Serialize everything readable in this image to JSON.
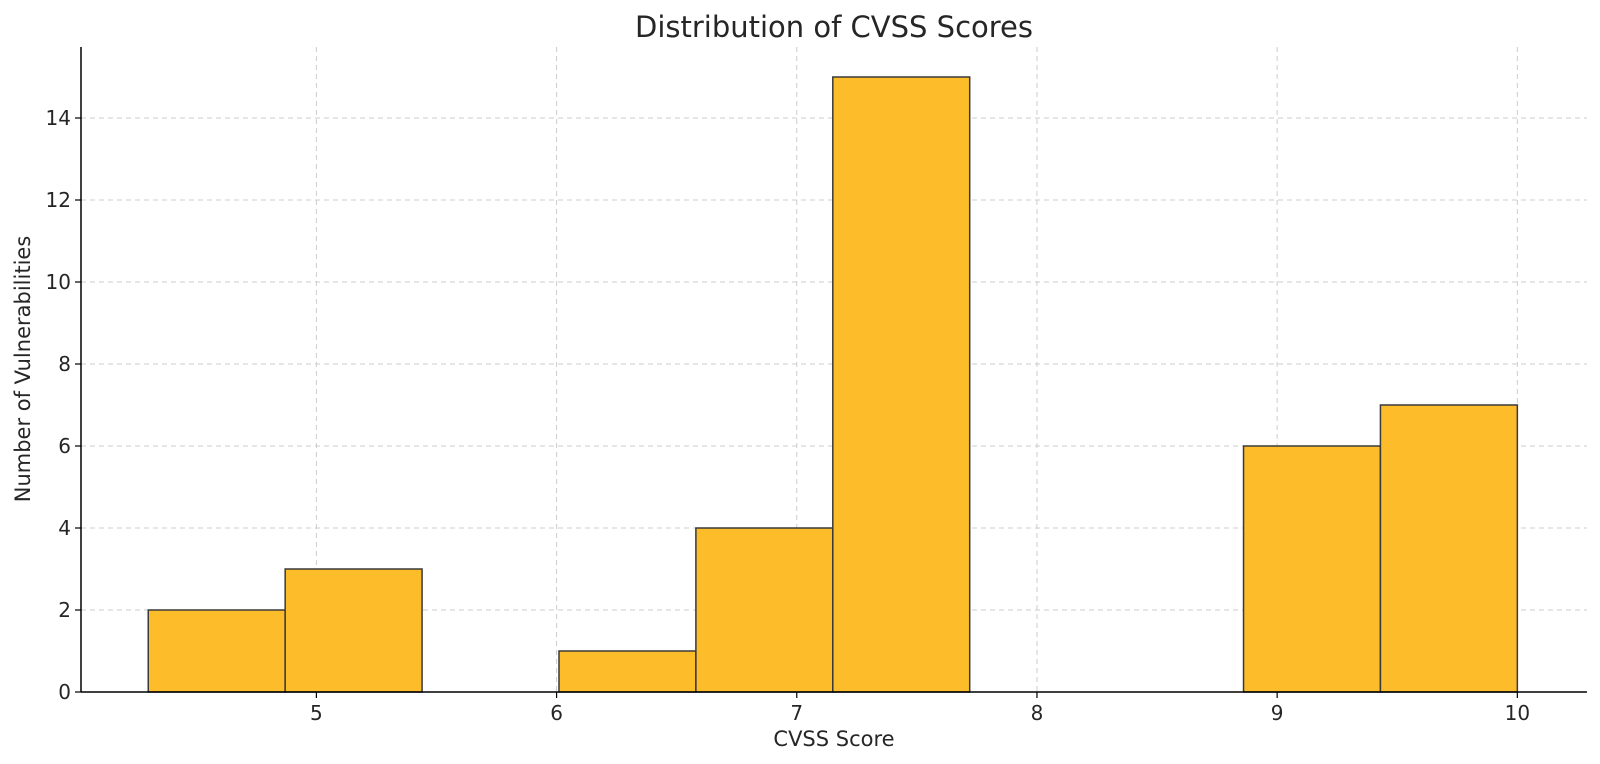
{
  "chart_data": {
    "type": "bar",
    "title": "Distribution of CVSS Scores",
    "xlabel": "CVSS Score",
    "ylabel": "Number of Vulnerabilities",
    "xlim": [
      4.02,
      10.29
    ],
    "ylim": [
      0,
      15.0
    ],
    "xticks": [
      5,
      6,
      7,
      8,
      9,
      10
    ],
    "yticks": [
      0,
      2,
      4,
      6,
      8,
      10,
      12,
      14
    ],
    "grid": true,
    "bar_color": "#FDBC29",
    "edge_color": "#3a3a3a",
    "bins": [
      {
        "x0": 4.3,
        "x1": 4.87,
        "count": 2
      },
      {
        "x0": 4.87,
        "x1": 5.44,
        "count": 3
      },
      {
        "x0": 5.44,
        "x1": 6.01,
        "count": 0
      },
      {
        "x0": 6.01,
        "x1": 6.58,
        "count": 1
      },
      {
        "x0": 6.58,
        "x1": 7.15,
        "count": 4
      },
      {
        "x0": 7.15,
        "x1": 7.72,
        "count": 15
      },
      {
        "x0": 7.72,
        "x1": 8.29,
        "count": 0
      },
      {
        "x0": 8.29,
        "x1": 8.86,
        "count": 0
      },
      {
        "x0": 8.86,
        "x1": 9.43,
        "count": 6
      },
      {
        "x0": 9.43,
        "x1": 10.0,
        "count": 7
      }
    ]
  }
}
